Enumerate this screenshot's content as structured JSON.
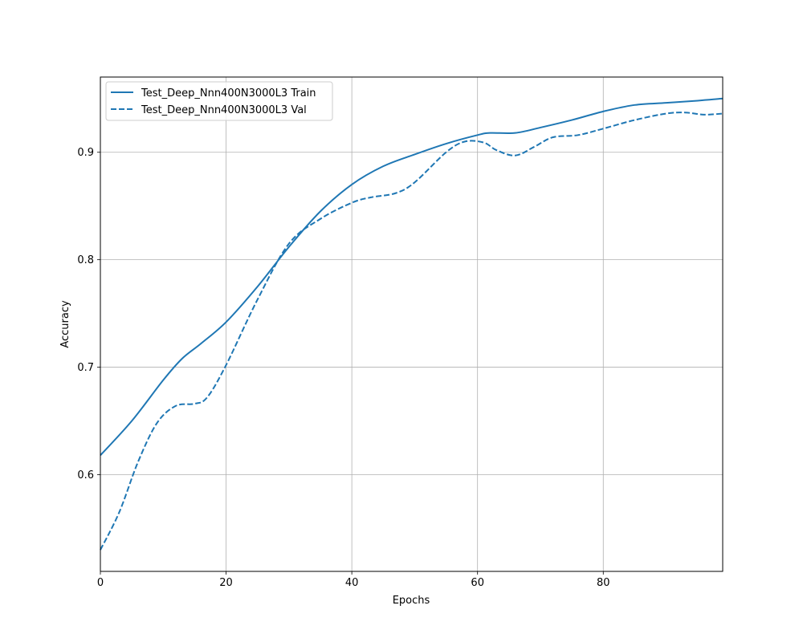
{
  "chart_data": {
    "type": "line",
    "title": "",
    "xlabel": "Epochs",
    "ylabel": "Accuracy",
    "xlim": [
      0,
      99
    ],
    "ylim": [
      0.51,
      0.97
    ],
    "xticks": [
      0,
      20,
      40,
      60,
      80
    ],
    "yticks": [
      0.6,
      0.7,
      0.8,
      0.9
    ],
    "grid": true,
    "legend_position": "upper-left",
    "series": [
      {
        "name": "Test_Deep_Nnn400N3000L3 Train",
        "color": "#1f77b4",
        "style": "solid",
        "x": [
          0,
          5,
          10,
          13,
          16,
          20,
          25,
          30,
          35,
          40,
          45,
          50,
          55,
          60,
          62,
          66,
          70,
          75,
          80,
          85,
          90,
          95,
          99
        ],
        "y": [
          0.618,
          0.65,
          0.688,
          0.708,
          0.722,
          0.742,
          0.775,
          0.812,
          0.845,
          0.87,
          0.887,
          0.898,
          0.908,
          0.916,
          0.918,
          0.918,
          0.923,
          0.93,
          0.938,
          0.944,
          0.946,
          0.948,
          0.95
        ]
      },
      {
        "name": "Test_Deep_Nnn400N3000L3 Val",
        "color": "#1f77b4",
        "style": "dashed",
        "x": [
          0,
          3,
          6,
          9,
          12,
          15,
          17,
          20,
          25,
          30,
          35,
          40,
          43,
          47,
          50,
          55,
          58,
          61,
          63,
          66,
          69,
          72,
          76,
          80,
          85,
          90,
          93,
          96,
          99
        ],
        "y": [
          0.53,
          0.565,
          0.612,
          0.648,
          0.664,
          0.666,
          0.672,
          0.702,
          0.763,
          0.815,
          0.838,
          0.853,
          0.858,
          0.862,
          0.872,
          0.9,
          0.91,
          0.909,
          0.902,
          0.897,
          0.905,
          0.914,
          0.916,
          0.922,
          0.93,
          0.936,
          0.937,
          0.935,
          0.936
        ]
      }
    ]
  }
}
